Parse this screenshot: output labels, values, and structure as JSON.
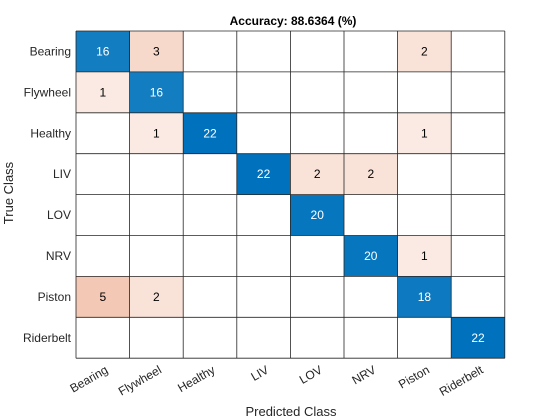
{
  "chart_data": {
    "type": "heatmap",
    "title": "Accuracy: 88.6364 (%)",
    "xlabel": "Predicted Class",
    "ylabel": "True Class",
    "classes": [
      "Bearing",
      "Flywheel",
      "Healthy",
      "LIV",
      "LOV",
      "NRV",
      "Piston",
      "Riderbelt"
    ],
    "matrix": [
      [
        16,
        3,
        0,
        0,
        0,
        0,
        2,
        0
      ],
      [
        1,
        16,
        0,
        0,
        0,
        0,
        0,
        0
      ],
      [
        0,
        1,
        22,
        0,
        0,
        0,
        1,
        0
      ],
      [
        0,
        0,
        0,
        22,
        2,
        2,
        0,
        0
      ],
      [
        0,
        0,
        0,
        0,
        20,
        0,
        0,
        0
      ],
      [
        0,
        0,
        0,
        0,
        0,
        20,
        1,
        0
      ],
      [
        5,
        2,
        0,
        0,
        0,
        0,
        18,
        0
      ],
      [
        0,
        0,
        0,
        0,
        0,
        0,
        0,
        22
      ]
    ],
    "grid": true,
    "colors": {
      "diagonal_max": "#0072BD",
      "off_diagonal_max": "#D95319",
      "empty": "#FFFFFF",
      "grid": "#262626"
    }
  }
}
